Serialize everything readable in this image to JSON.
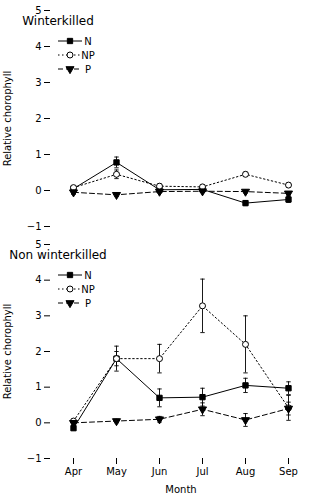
{
  "chart_data": [
    {
      "type": "line",
      "title": "Winterkilled",
      "categories": [
        "Apr",
        "May",
        "Jun",
        "Jul",
        "Aug",
        "Sep"
      ],
      "series": [
        {
          "name": "N",
          "color": "black",
          "marker": "square",
          "line_style": "solid",
          "values": [
            0.05,
            0.78,
            0.02,
            0.03,
            -0.35,
            -0.25
          ],
          "se": [
            0.08,
            0.15,
            0.05,
            0.05,
            0.07,
            0.08
          ]
        },
        {
          "name": "NP",
          "color": "black",
          "marker": "open-circle",
          "line_style": "dotted",
          "values": [
            0.08,
            0.45,
            0.12,
            0.1,
            0.45,
            0.15
          ],
          "se": [
            0.06,
            0.12,
            0.06,
            0.05,
            0.06,
            0.06
          ]
        },
        {
          "name": "P",
          "color": "black",
          "marker": "triangle-down",
          "line_style": "dashed",
          "values": [
            -0.05,
            -0.12,
            -0.03,
            -0.02,
            -0.03,
            -0.08
          ],
          "se": [
            0.06,
            0.05,
            0.04,
            0.04,
            0.04,
            0.05
          ]
        }
      ],
      "ylabel": "Relative chorophyll",
      "ylim": [
        -1,
        5
      ],
      "yticks": [
        -1,
        0,
        1,
        2,
        3,
        4,
        5
      ],
      "legend": "upper left",
      "grid": false,
      "tick_labels": "y"
    },
    {
      "type": "line",
      "title": "Non winterkilled",
      "categories": [
        "Apr",
        "May",
        "Jun",
        "Jul",
        "Aug",
        "Sep"
      ],
      "series": [
        {
          "name": "N",
          "color": "black",
          "marker": "square",
          "line_style": "solid",
          "values": [
            -0.15,
            1.8,
            0.7,
            0.72,
            1.05,
            0.97
          ],
          "se": [
            0.05,
            0.2,
            0.25,
            0.25,
            0.2,
            0.18
          ]
        },
        {
          "name": "NP",
          "color": "black",
          "marker": "open-circle",
          "line_style": "dotted",
          "values": [
            0.05,
            1.8,
            1.8,
            3.28,
            2.2,
            0.42
          ],
          "se": [
            0.06,
            0.35,
            0.4,
            0.75,
            0.8,
            0.35
          ]
        },
        {
          "name": "P",
          "color": "black",
          "marker": "triangle-down",
          "line_style": "dashed",
          "values": [
            0.0,
            0.05,
            0.1,
            0.38,
            0.08,
            0.4
          ],
          "se": [
            0.04,
            0.05,
            0.08,
            0.18,
            0.18,
            0.18
          ]
        }
      ],
      "xlabel": "Month",
      "ylabel": "Relative chorophyll",
      "ylim": [
        -1,
        5
      ],
      "yticks": [
        -1,
        0,
        1,
        2,
        3,
        4,
        5
      ],
      "legend": "upper left",
      "grid": false
    }
  ]
}
